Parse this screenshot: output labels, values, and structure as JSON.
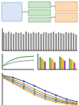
{
  "chart_data": [
    {
      "type": "bar",
      "categories": [
        null,
        null,
        null,
        null,
        null,
        null,
        null,
        null,
        null,
        null,
        null,
        null,
        null,
        null,
        null,
        null,
        null,
        null,
        null,
        null,
        null,
        null,
        null,
        null,
        null,
        null,
        null,
        null,
        null,
        null
      ],
      "values": [
        0.82,
        0.78,
        0.85,
        0.8,
        0.76,
        0.83,
        0.79,
        0.81,
        0.74,
        0.86,
        0.8,
        0.77,
        0.84,
        0.79,
        0.82,
        0.75,
        0.81,
        0.83,
        0.78,
        0.8,
        0.85,
        0.77,
        0.82,
        0.79,
        0.76,
        0.84,
        0.8,
        0.81,
        0.78,
        0.72
      ],
      "color": "#8c8c8c",
      "ylim": [
        0,
        1
      ],
      "tick_labels": false
    },
    {
      "type": "line",
      "x": [
        0,
        1,
        2,
        3,
        4,
        5,
        6,
        7,
        8,
        9,
        10
      ],
      "series": [
        {
          "color": "#3a9b3a",
          "values": [
            0.2,
            0.35,
            0.5,
            0.6,
            0.68,
            0.74,
            0.78,
            0.8,
            0.82,
            0.83,
            0.84
          ]
        },
        {
          "color": "#9a9a9a",
          "values": [
            0.2,
            0.28,
            0.36,
            0.42,
            0.47,
            0.5,
            0.53,
            0.55,
            0.56,
            0.57,
            0.58
          ]
        }
      ],
      "xlim": [
        0,
        10
      ],
      "ylim": [
        0,
        1
      ],
      "tick_labels": false
    },
    {
      "type": "bar",
      "categories": [
        null,
        null,
        null,
        null
      ],
      "series": [
        {
          "color": "#4caf50",
          "values": [
            0.8,
            0.75,
            0.82,
            0.7
          ]
        },
        {
          "color": "#f39c12",
          "values": [
            0.7,
            0.68,
            0.74,
            0.62
          ]
        },
        {
          "color": "#f1c40f",
          "values": [
            0.6,
            0.58,
            0.66,
            0.55
          ]
        },
        {
          "color": "#8e44ad",
          "values": [
            0.5,
            0.45,
            0.56,
            0.42
          ]
        }
      ],
      "ylim": [
        0,
        1
      ],
      "tick_labels": false
    },
    {
      "type": "line",
      "x": [
        0,
        1,
        2,
        3,
        4,
        5,
        6,
        7
      ],
      "series": [
        {
          "color": "#1f4e9c",
          "values": [
            0.92,
            0.85,
            0.74,
            0.6,
            0.45,
            0.32,
            0.2,
            0.12
          ]
        },
        {
          "color": "#e07b39",
          "values": [
            0.9,
            0.8,
            0.66,
            0.5,
            0.36,
            0.24,
            0.15,
            0.08
          ]
        },
        {
          "color": "#3a9b3a",
          "values": [
            0.88,
            0.76,
            0.6,
            0.44,
            0.3,
            0.19,
            0.11,
            0.06
          ]
        },
        {
          "color": "#9b59b6",
          "values": [
            0.86,
            0.72,
            0.55,
            0.38,
            0.25,
            0.15,
            0.08,
            0.04
          ]
        },
        {
          "color": "#d4a017",
          "values": [
            0.85,
            0.68,
            0.5,
            0.33,
            0.2,
            0.11,
            0.06,
            0.03
          ]
        }
      ],
      "xlim": [
        0,
        7
      ],
      "ylim": [
        0,
        1
      ],
      "tick_labels": false
    }
  ]
}
